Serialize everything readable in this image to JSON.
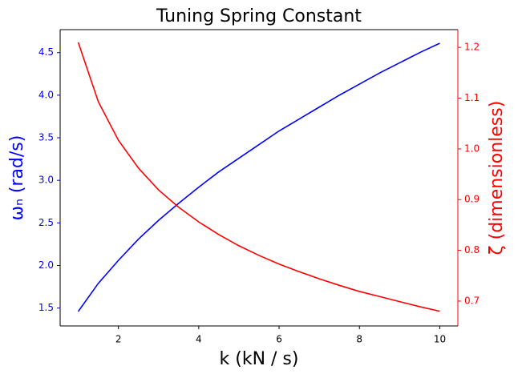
{
  "chart_data": {
    "type": "line",
    "title": "Tuning Spring Constant",
    "xlabel": "k (kN / s)",
    "ylabel": "ωₙ (rad/s)",
    "y2label": "ζ (dimensionless)",
    "x": [
      1,
      1.5,
      2,
      2.5,
      3,
      3.5,
      4,
      4.5,
      5,
      5.5,
      6,
      6.5,
      7,
      7.5,
      8,
      8.5,
      9,
      9.5,
      10
    ],
    "series": [
      {
        "name": "ωₙ",
        "color": "#0000ff",
        "axis": "y",
        "values": [
          1.46,
          1.79,
          2.06,
          2.31,
          2.53,
          2.73,
          2.92,
          3.1,
          3.26,
          3.42,
          3.58,
          3.72,
          3.86,
          4.0,
          4.13,
          4.26,
          4.38,
          4.5,
          4.61
        ]
      },
      {
        "name": "ζ",
        "color": "#ff0000",
        "axis": "y2",
        "values": [
          1.21,
          1.093,
          1.017,
          0.962,
          0.919,
          0.885,
          0.856,
          0.831,
          0.809,
          0.79,
          0.773,
          0.758,
          0.744,
          0.731,
          0.719,
          0.709,
          0.699,
          0.689,
          0.68
        ]
      }
    ],
    "xlim": [
      0.55,
      10.45
    ],
    "xticks": [
      2,
      4,
      6,
      8,
      10
    ],
    "ylim": [
      1.29,
      4.77
    ],
    "yticks": [
      1.5,
      {
        "value": 2,
        "label": "2.0"
      },
      2.5,
      {
        "value": 3,
        "label": "3.0"
      },
      3.5,
      {
        "value": 4,
        "label": "4.0"
      },
      4.5
    ],
    "y2lim": [
      0.651,
      1.235
    ],
    "y2ticks": [
      0.7,
      0.8,
      0.9,
      {
        "value": 1,
        "label": "1.0"
      },
      1.1,
      1.2
    ]
  }
}
